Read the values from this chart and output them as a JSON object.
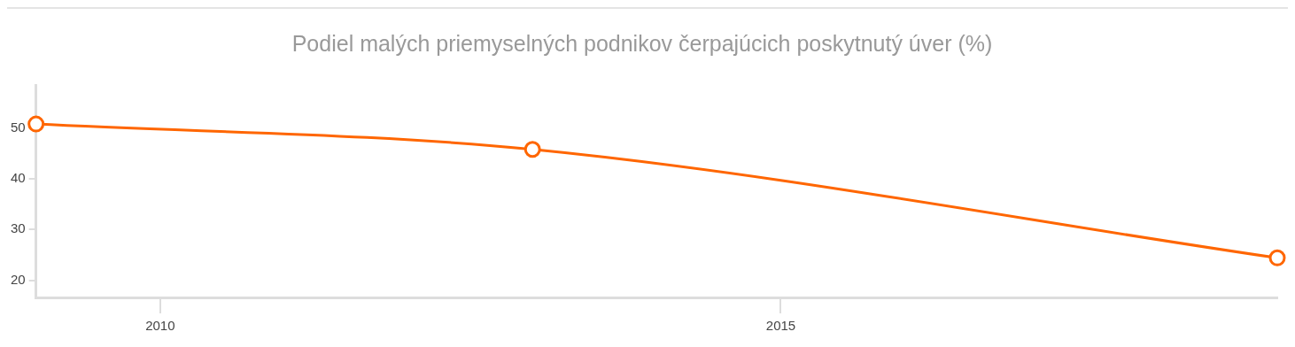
{
  "chart_data": {
    "type": "line",
    "title": "Podiel malých priemyselných podnikov čerpajúcich poskytnutý úver (%)",
    "x": [
      2009,
      2013,
      2019
    ],
    "series": [
      {
        "color": "#ff6600",
        "values": [
          50.8,
          45.8,
          24.4
        ]
      }
    ],
    "xlim": [
      2009,
      2019
    ],
    "xticks": [
      2010,
      2015
    ],
    "ylim": [
      16.6,
      58.5
    ],
    "yticks": [
      20,
      30,
      40,
      50
    ],
    "grid": false,
    "legend": false,
    "marker": "circle",
    "line_style": "solid"
  }
}
